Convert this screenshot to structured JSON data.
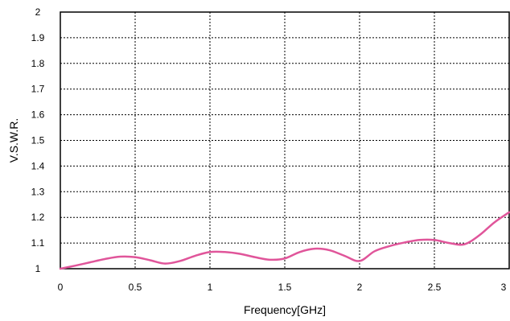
{
  "chart_data": {
    "type": "line",
    "title": "",
    "xlabel": "Frequency[GHz]",
    "ylabel": "V.S.W.R.",
    "xlim": [
      0,
      3
    ],
    "ylim": [
      1,
      2
    ],
    "grid": true,
    "x_ticks": [
      "0",
      "0.5",
      "1",
      "1.5",
      "2",
      "2.5",
      "3"
    ],
    "y_ticks": [
      "1",
      "1.1",
      "1.2",
      "1.3",
      "1.4",
      "1.5",
      "1.6",
      "1.7",
      "1.8",
      "1.9",
      "2"
    ],
    "series_color": "#e0559a",
    "series": [
      {
        "x": [
          0,
          0.1,
          0.2,
          0.3,
          0.4,
          0.5,
          0.6,
          0.7,
          0.8,
          0.9,
          1.0,
          1.1,
          1.2,
          1.3,
          1.4,
          1.5,
          1.6,
          1.7,
          1.8,
          1.9,
          2.0,
          2.1,
          2.2,
          2.3,
          2.4,
          2.5,
          2.6,
          2.7,
          2.8,
          2.9,
          3.0
        ],
        "values": [
          1.0,
          1.012,
          1.025,
          1.038,
          1.047,
          1.045,
          1.033,
          1.02,
          1.03,
          1.05,
          1.065,
          1.065,
          1.058,
          1.045,
          1.035,
          1.04,
          1.065,
          1.078,
          1.072,
          1.05,
          1.03,
          1.068,
          1.088,
          1.102,
          1.112,
          1.112,
          1.1,
          1.095,
          1.13,
          1.18,
          1.22
        ]
      }
    ]
  }
}
